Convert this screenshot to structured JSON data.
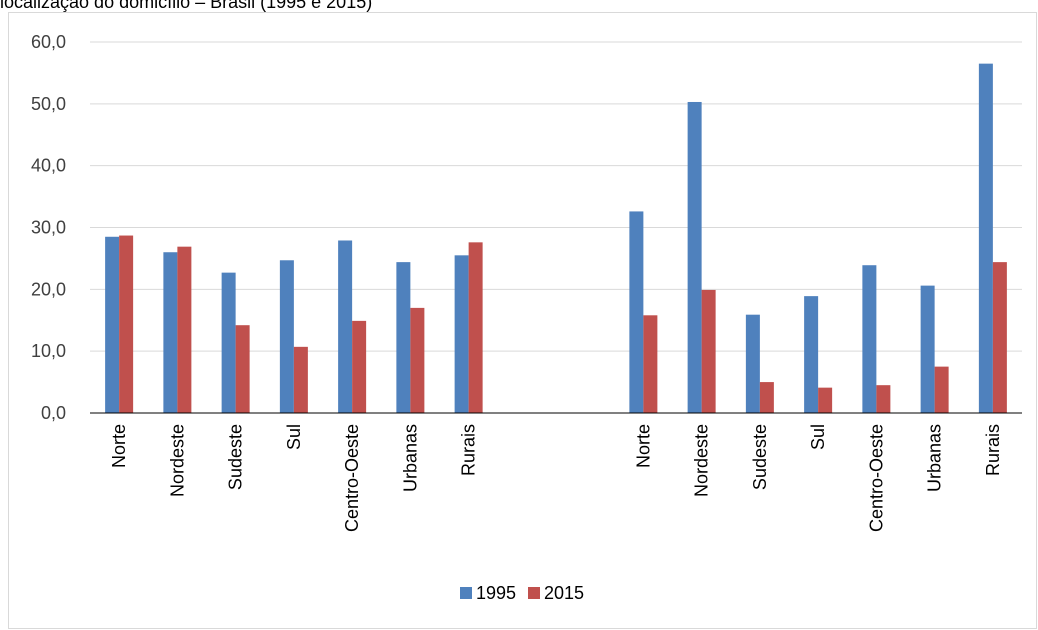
{
  "title": "localização do domicílio – Brasil (1995 e 2015)",
  "chart_data": {
    "type": "bar",
    "categories": [
      "Norte",
      "Nordeste",
      "Sudeste",
      "Sul",
      "Centro-Oeste",
      "Urbanas",
      "Rurais",
      "",
      "",
      "Norte",
      "Nordeste",
      "Sudeste",
      "Sul",
      "Centro-Oeste",
      "Urbanas",
      "Rurais"
    ],
    "series": [
      {
        "name": "1995",
        "color": "#4f81bd",
        "values": [
          28.5,
          26.0,
          22.7,
          24.7,
          27.9,
          24.4,
          25.5,
          null,
          null,
          32.6,
          50.3,
          15.9,
          18.9,
          23.9,
          20.6,
          56.5
        ]
      },
      {
        "name": "2015",
        "color": "#c0504d",
        "values": [
          28.7,
          26.9,
          14.2,
          10.7,
          14.9,
          17.0,
          27.6,
          null,
          null,
          15.8,
          19.9,
          5.0,
          4.1,
          4.5,
          7.5,
          24.4
        ]
      }
    ],
    "yticks": [
      "0,0",
      "10,0",
      "20,0",
      "30,0",
      "40,0",
      "50,0",
      "60,0"
    ],
    "ylim": [
      0,
      60
    ],
    "grid": true,
    "legend_position": "bottom"
  }
}
